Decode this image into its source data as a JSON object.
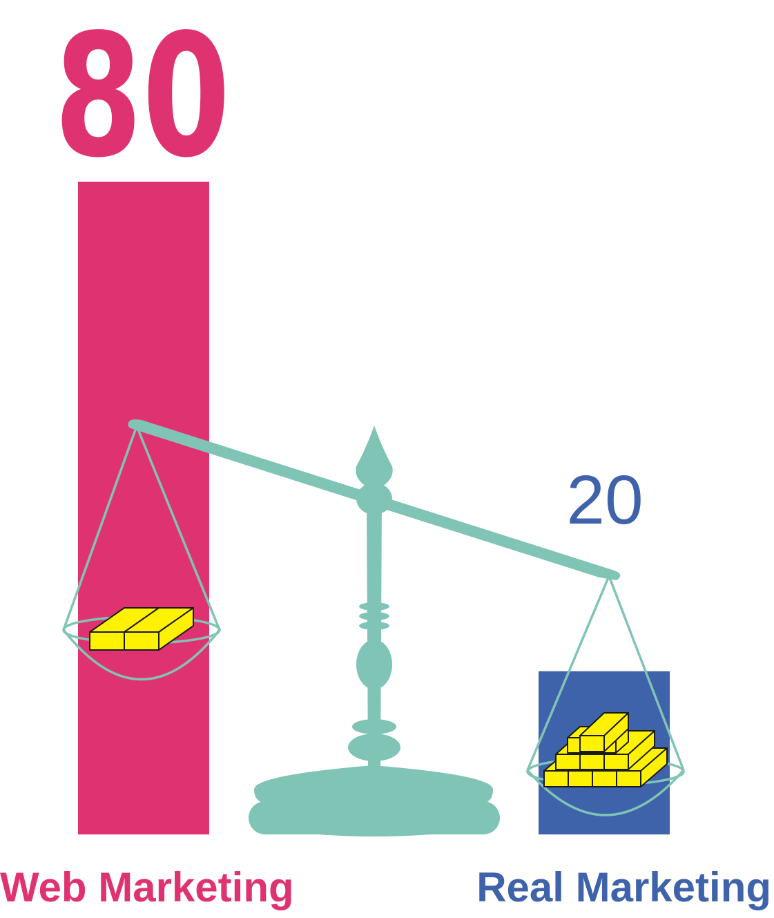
{
  "chart_data": {
    "type": "bar",
    "categories": [
      "Web Marketing",
      "Real Marketing"
    ],
    "values": [
      80,
      20
    ],
    "data_labels": [
      "80",
      "20"
    ],
    "title": "",
    "xlabel": "",
    "ylabel": "",
    "ylim": [
      0,
      80
    ],
    "grid": false,
    "legend": "none"
  },
  "colors": {
    "web": "#df3371",
    "real": "#3f63ab",
    "scale": "#80c4b5",
    "gold": "#fff200",
    "gold_outline": "#1a1a1a"
  },
  "icons": [
    "balance-scale-icon",
    "gold-bars-icon"
  ]
}
